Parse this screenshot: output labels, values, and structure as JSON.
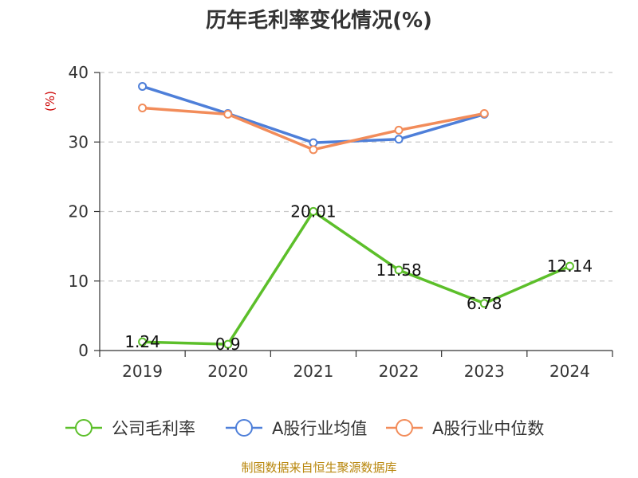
{
  "chart_data": {
    "type": "line",
    "title": "历年毛利率变化情况(%)",
    "ylabel": "(%)",
    "ylim": [
      0,
      40
    ],
    "yticks": [
      0,
      10,
      20,
      30,
      40
    ],
    "grid": true,
    "legend_position": "bottom",
    "categories": [
      "2019",
      "2020",
      "2021",
      "2022",
      "2023",
      "2024"
    ],
    "series": [
      {
        "name": "公司毛利率",
        "color": "#5cbf2a",
        "values": [
          1.24,
          0.9,
          20.01,
          11.58,
          6.78,
          12.14
        ],
        "labels": [
          "1.24",
          "0.9",
          "20.01",
          "11.58",
          "6.78",
          "12.14"
        ]
      },
      {
        "name": "A股行业均值",
        "color": "#4e7fd9",
        "values": [
          38.0,
          34.1,
          29.9,
          30.4,
          34.0,
          null
        ]
      },
      {
        "name": "A股行业中位数",
        "color": "#f28c5a",
        "values": [
          34.9,
          34.0,
          28.9,
          31.7,
          34.1,
          null
        ]
      }
    ],
    "source": "制图数据来自恒生聚源数据库"
  }
}
